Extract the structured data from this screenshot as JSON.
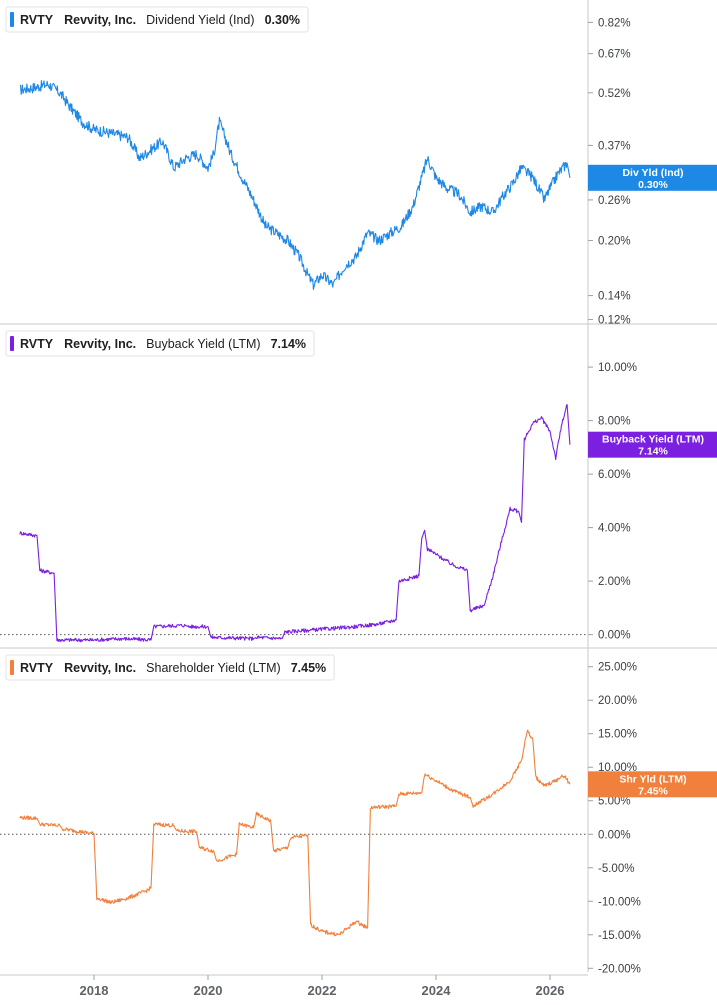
{
  "chart_data": [
    {
      "type": "line",
      "ticker": "RVTY",
      "company": "Revvity, Inc.",
      "metric": "Dividend Yield (Ind)",
      "current_value": "0.30%",
      "flag_label": "Div Yld (Ind)",
      "flag_value": "0.30%",
      "color": "#1e88e5",
      "y_scale": "log",
      "ylim": [
        0.115,
        0.9
      ],
      "y_ticks": [
        0.12,
        0.14,
        0.2,
        0.26,
        0.37,
        0.52,
        0.67,
        0.82
      ],
      "y_tick_labels": [
        "0.12%",
        "0.14%",
        "0.20%",
        "0.26%",
        "0.37%",
        "0.52%",
        "0.67%",
        "0.82%"
      ],
      "series": [
        {
          "x": [
            2016.7,
            2017.0,
            2017.2,
            2017.4,
            2017.6,
            2017.8,
            2018.0,
            2018.3,
            2018.6,
            2018.8,
            2019.0,
            2019.2,
            2019.4,
            2019.6,
            2019.8,
            2020.0,
            2020.1,
            2020.2,
            2020.4,
            2020.6,
            2020.8,
            2021.0,
            2021.2,
            2021.4,
            2021.6,
            2021.75,
            2021.85,
            2022.0,
            2022.2,
            2022.4,
            2022.6,
            2022.8,
            2023.0,
            2023.2,
            2023.4,
            2023.6,
            2023.75,
            2023.85,
            2024.0,
            2024.2,
            2024.4,
            2024.6,
            2024.8,
            2025.0,
            2025.2,
            2025.35,
            2025.5,
            2025.7,
            2025.9,
            2026.0,
            2026.15,
            2026.3,
            2026.35
          ],
          "y": [
            0.53,
            0.54,
            0.55,
            0.52,
            0.47,
            0.43,
            0.41,
            0.4,
            0.39,
            0.34,
            0.36,
            0.38,
            0.32,
            0.34,
            0.35,
            0.32,
            0.35,
            0.43,
            0.35,
            0.3,
            0.26,
            0.22,
            0.21,
            0.2,
            0.18,
            0.16,
            0.15,
            0.16,
            0.15,
            0.17,
            0.18,
            0.21,
            0.2,
            0.21,
            0.22,
            0.25,
            0.3,
            0.34,
            0.3,
            0.28,
            0.27,
            0.24,
            0.25,
            0.24,
            0.27,
            0.29,
            0.32,
            0.3,
            0.26,
            0.28,
            0.31,
            0.33,
            0.3
          ]
        }
      ]
    },
    {
      "type": "line",
      "ticker": "RVTY",
      "company": "Revvity, Inc.",
      "metric": "Buyback Yield (LTM)",
      "current_value": "7.14%",
      "flag_label": "Buyback Yield (LTM)",
      "flag_value": "7.14%",
      "color": "#7b1fe0",
      "ylim": [
        -0.5,
        11.2
      ],
      "y_ticks": [
        0,
        2,
        4,
        6,
        8,
        10
      ],
      "y_tick_labels": [
        "0.00%",
        "2.00%",
        "4.00%",
        "6.00%",
        "8.00%",
        "10.00%"
      ],
      "series": [
        {
          "x": [
            2016.7,
            2017.0,
            2017.05,
            2017.3,
            2017.35,
            2018.0,
            2018.5,
            2019.0,
            2019.05,
            2019.6,
            2019.65,
            2020.0,
            2020.05,
            2020.8,
            2020.85,
            2021.3,
            2021.35,
            2022.0,
            2022.6,
            2023.0,
            2023.3,
            2023.35,
            2023.7,
            2023.75,
            2023.8,
            2023.85,
            2024.0,
            2024.3,
            2024.55,
            2024.6,
            2024.85,
            2024.9,
            2025.0,
            2025.15,
            2025.3,
            2025.45,
            2025.5,
            2025.55,
            2025.7,
            2025.85,
            2026.0,
            2026.1,
            2026.2,
            2026.3,
            2026.35
          ],
          "y": [
            3.8,
            3.7,
            2.4,
            2.3,
            -0.2,
            -0.2,
            -0.15,
            -0.2,
            0.3,
            0.35,
            0.3,
            0.3,
            -0.1,
            -0.15,
            -0.1,
            -0.15,
            0.1,
            0.2,
            0.3,
            0.4,
            0.55,
            2.0,
            2.2,
            3.6,
            3.9,
            3.2,
            3.0,
            2.6,
            2.4,
            0.9,
            1.1,
            1.5,
            2.2,
            3.5,
            4.7,
            4.6,
            4.2,
            7.3,
            7.9,
            8.1,
            7.6,
            6.6,
            7.8,
            8.6,
            7.1
          ]
        }
      ]
    },
    {
      "type": "line",
      "ticker": "RVTY",
      "company": "Revvity, Inc.",
      "metric": "Shareholder Yield (LTM)",
      "current_value": "7.45%",
      "flag_label": "Shr Yld (LTM)",
      "flag_value": "7.45%",
      "color": "#f0803c",
      "ylim": [
        -21,
        26
      ],
      "y_ticks": [
        -20,
        -15,
        -10,
        -5,
        0,
        5,
        10,
        15,
        20,
        25
      ],
      "y_tick_labels": [
        "-20.00%",
        "-15.00%",
        "-10.00%",
        "-5.00%",
        "0.00%",
        "5.00%",
        "10.00%",
        "15.00%",
        "20.00%",
        "25.00%"
      ],
      "series": [
        {
          "x": [
            2016.7,
            2017.0,
            2017.05,
            2017.4,
            2017.45,
            2017.9,
            2018.0,
            2018.05,
            2018.3,
            2018.6,
            2018.9,
            2019.0,
            2019.05,
            2019.4,
            2019.45,
            2019.8,
            2019.85,
            2020.1,
            2020.15,
            2020.5,
            2020.55,
            2020.8,
            2020.85,
            2021.1,
            2021.15,
            2021.4,
            2021.45,
            2021.75,
            2021.8,
            2022.0,
            2022.3,
            2022.6,
            2022.8,
            2022.85,
            2023.3,
            2023.35,
            2023.75,
            2023.8,
            2024.0,
            2024.3,
            2024.6,
            2024.65,
            2025.0,
            2025.3,
            2025.5,
            2025.6,
            2025.7,
            2025.75,
            2025.9,
            2026.1,
            2026.25,
            2026.35
          ],
          "y": [
            2.5,
            2.4,
            1.5,
            1.3,
            0.8,
            0.2,
            0.1,
            -9.5,
            -10.2,
            -9.5,
            -8.5,
            -8.0,
            1.5,
            1.3,
            0.5,
            0.4,
            -2.0,
            -2.5,
            -4.0,
            -3.0,
            1.5,
            1.0,
            3.0,
            2.0,
            -2.5,
            -2.0,
            -0.5,
            -0.2,
            -13.5,
            -14.5,
            -15.0,
            -13.0,
            -14.0,
            4.0,
            4.2,
            6.0,
            6.2,
            9.0,
            8.0,
            6.5,
            5.5,
            4.2,
            6.0,
            8.0,
            11.0,
            15.5,
            14.0,
            8.5,
            7.2,
            8.0,
            8.8,
            7.45
          ]
        }
      ]
    }
  ],
  "x_axis": {
    "ticks": [
      2018,
      2020,
      2022,
      2024,
      2026
    ],
    "tick_labels": [
      "2018",
      "2020",
      "2022",
      "2024",
      "2026"
    ]
  }
}
